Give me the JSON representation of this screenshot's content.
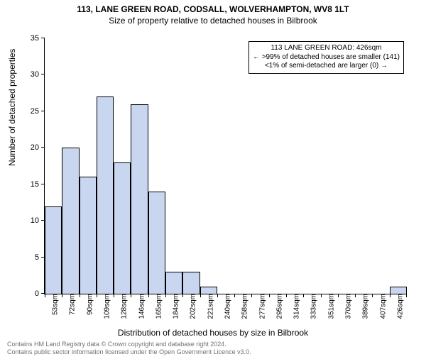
{
  "title_main": "113, LANE GREEN ROAD, CODSALL, WOLVERHAMPTON, WV8 1LT",
  "title_sub": "Size of property relative to detached houses in Bilbrook",
  "y_axis_label": "Number of detached properties",
  "x_axis_label": "Distribution of detached houses by size in Bilbrook",
  "chart": {
    "type": "histogram",
    "ylim": [
      0,
      35
    ],
    "ytick_step": 5,
    "bar_fill": "#c8d7ef",
    "bar_stroke": "#000000",
    "background": "#ffffff",
    "x_labels": [
      "53sqm",
      "72sqm",
      "90sqm",
      "109sqm",
      "128sqm",
      "146sqm",
      "165sqm",
      "184sqm",
      "202sqm",
      "221sqm",
      "240sqm",
      "258sqm",
      "277sqm",
      "295sqm",
      "314sqm",
      "333sqm",
      "351sqm",
      "370sqm",
      "389sqm",
      "407sqm",
      "426sqm"
    ],
    "values": [
      12,
      20,
      16,
      27,
      18,
      26,
      14,
      3,
      3,
      1,
      0,
      0,
      0,
      0,
      0,
      0,
      0,
      0,
      0,
      0,
      1
    ],
    "title_fontsize": 12,
    "label_fontsize": 12,
    "tick_fontsize": 10
  },
  "annotation": {
    "line1": "113 LANE GREEN ROAD: 426sqm",
    "line2": "← >99% of detached houses are smaller (141)",
    "line3": "<1% of semi-detached are larger (0) →",
    "border_color": "#000000",
    "background": "#ffffff"
  },
  "footer": {
    "line1": "Contains HM Land Registry data © Crown copyright and database right 2024.",
    "line2": "Contains public sector information licensed under the Open Government Licence v3.0.",
    "color": "#707070"
  }
}
